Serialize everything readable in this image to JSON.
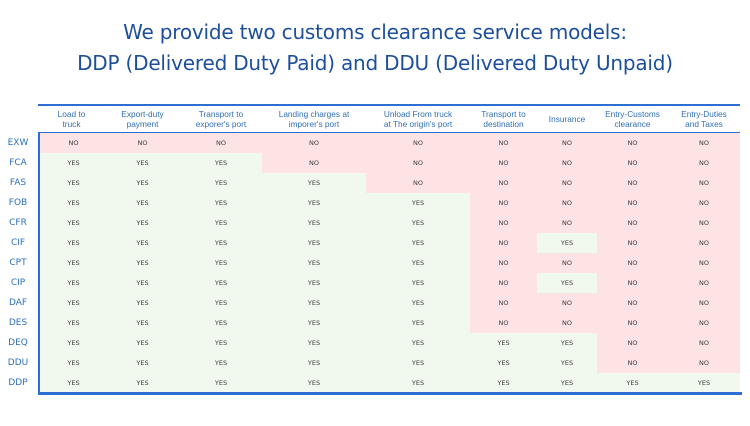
{
  "title": {
    "line1": "We provide two customs clearance service models:",
    "line2": "DDP (Delivered Duty Paid) and DDU (Delivered Duty Unpaid)"
  },
  "colors": {
    "title": "#1d4f9c",
    "label": "#2f6fb8",
    "border": "#2d6ed2",
    "yes_bg": "#f1f8ee",
    "no_bg": "#fde3e4"
  },
  "table": {
    "columns": [
      {
        "line1": "Load to",
        "line2": "truck"
      },
      {
        "line1": "Export-duty",
        "line2": "payment"
      },
      {
        "line1": "Transport to",
        "line2": "exporer's port"
      },
      {
        "line1": "Landing charges at",
        "line2": "imporer's port"
      },
      {
        "line1": "Unload From truck",
        "line2": "at The origin's port"
      },
      {
        "line1": "Transport to",
        "line2": "destination"
      },
      {
        "line1": "Insurance",
        "line2": ""
      },
      {
        "line1": "Entry-Customs",
        "line2": "clearance"
      },
      {
        "line1": "Entry-Duties",
        "line2": "and Taxes"
      }
    ],
    "rows": [
      {
        "term": "EXW",
        "values": [
          "NO",
          "NO",
          "NO",
          "NO",
          "NO",
          "NO",
          "NO",
          "NO",
          "NO"
        ]
      },
      {
        "term": "FCA",
        "values": [
          "YES",
          "YES",
          "YES",
          "NO",
          "NO",
          "NO",
          "NO",
          "NO",
          "NO"
        ]
      },
      {
        "term": "FAS",
        "values": [
          "YES",
          "YES",
          "YES",
          "YES",
          "NO",
          "NO",
          "NO",
          "NO",
          "NO"
        ]
      },
      {
        "term": "FOB",
        "values": [
          "YES",
          "YES",
          "YES",
          "YES",
          "YES",
          "NO",
          "NO",
          "NO",
          "NO"
        ]
      },
      {
        "term": "CFR",
        "values": [
          "YES",
          "YES",
          "YES",
          "YES",
          "YES",
          "NO",
          "NO",
          "NO",
          "NO"
        ]
      },
      {
        "term": "CIF",
        "values": [
          "YES",
          "YES",
          "YES",
          "YES",
          "YES",
          "NO",
          "YES",
          "NO",
          "NO"
        ]
      },
      {
        "term": "CPT",
        "values": [
          "YES",
          "YES",
          "YES",
          "YES",
          "YES",
          "NO",
          "NO",
          "NO",
          "NO"
        ]
      },
      {
        "term": "CIP",
        "values": [
          "YES",
          "YES",
          "YES",
          "YES",
          "YES",
          "NO",
          "YES",
          "NO",
          "NO"
        ]
      },
      {
        "term": "DAF",
        "values": [
          "YES",
          "YES",
          "YES",
          "YES",
          "YES",
          "NO",
          "NO",
          "NO",
          "NO"
        ]
      },
      {
        "term": "DES",
        "values": [
          "YES",
          "YES",
          "YES",
          "YES",
          "YES",
          "NO",
          "NO",
          "NO",
          "NO"
        ]
      },
      {
        "term": "DEQ",
        "values": [
          "YES",
          "YES",
          "YES",
          "YES",
          "YES",
          "YES",
          "YES",
          "NO",
          "NO"
        ]
      },
      {
        "term": "DDU",
        "values": [
          "YES",
          "YES",
          "YES",
          "YES",
          "YES",
          "YES",
          "YES",
          "NO",
          "NO"
        ]
      },
      {
        "term": "DDP",
        "values": [
          "YES",
          "YES",
          "YES",
          "YES",
          "YES",
          "YES",
          "YES",
          "YES",
          "YES"
        ]
      }
    ]
  }
}
